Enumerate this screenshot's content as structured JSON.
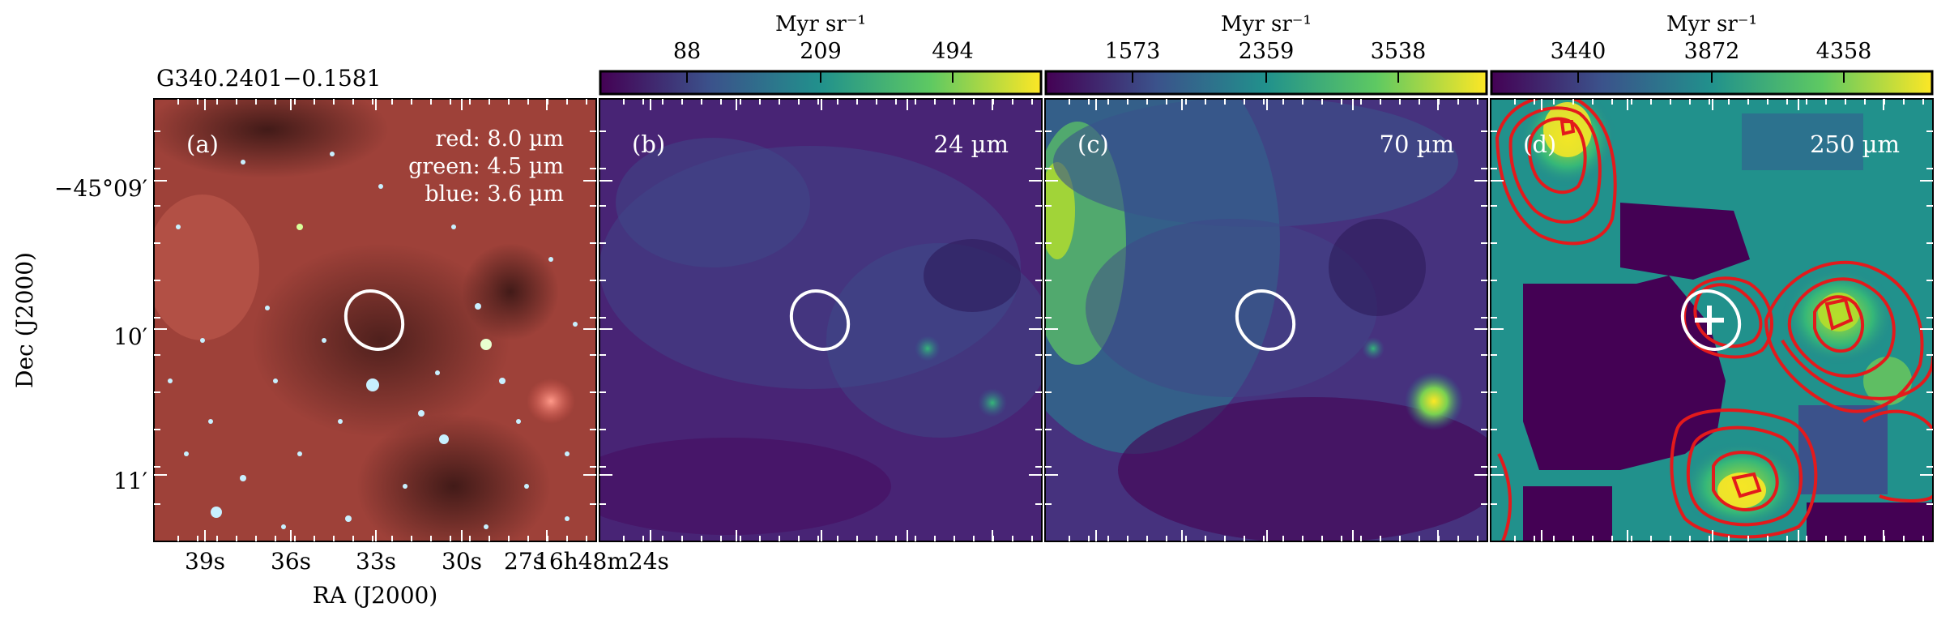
{
  "figure": {
    "source_title": "G340.2401−0.1581",
    "ylabel": "Dec (J2000)",
    "xlabel": "RA (J2000)",
    "dec_ticks": [
      "−45°09′",
      "10′",
      "11′"
    ],
    "ra_ticks": [
      "39s",
      "36s",
      "33s",
      "30s",
      "27s",
      "16h48m24s"
    ]
  },
  "panels": [
    {
      "id": "a",
      "label": "(a)",
      "legend": [
        "red: 8.0 µm",
        "green: 4.5 µm",
        "blue: 3.6 µm"
      ]
    },
    {
      "id": "b",
      "label": "(b)",
      "band": "24 µm",
      "colorbar": {
        "unit": "Myr sr⁻¹",
        "ticks": [
          "88",
          "209",
          "494"
        ]
      }
    },
    {
      "id": "c",
      "label": "(c)",
      "band": "70 µm",
      "colorbar": {
        "unit": "Myr sr⁻¹",
        "ticks": [
          "1573",
          "2359",
          "3538"
        ]
      }
    },
    {
      "id": "d",
      "label": "(d)",
      "band": "250 µm",
      "colorbar": {
        "unit": "Myr sr⁻¹",
        "ticks": [
          "3440",
          "3872",
          "4358"
        ]
      }
    }
  ],
  "colors": {
    "viridis_low": "#440154",
    "viridis_mid": "#21918c",
    "viridis_high": "#fde725",
    "contour": "#e31a1c",
    "aperture": "#ffffff",
    "rgb_background": "#a8463c"
  }
}
